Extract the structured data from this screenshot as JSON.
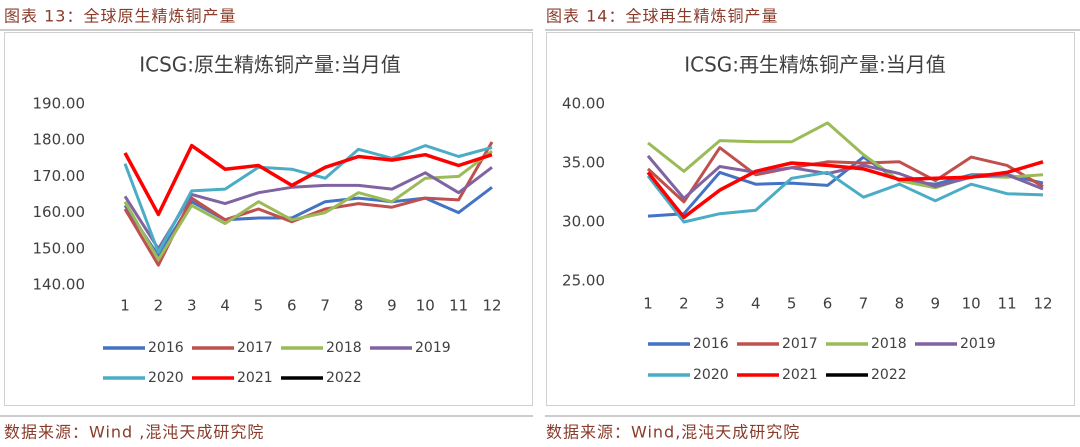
{
  "chart_data": [
    {
      "type": "line",
      "caption": "图表 13：全球原生精炼铜产量",
      "source": "数据来源：Wind ,混沌天成研究院",
      "title": "ICSG:原生精炼铜产量:当月值",
      "categories": [
        "1",
        "2",
        "3",
        "4",
        "5",
        "6",
        "7",
        "8",
        "9",
        "10",
        "11",
        "12"
      ],
      "ylim": [
        140,
        190
      ],
      "yticks": [
        {
          "value": 140,
          "label": "140.00"
        },
        {
          "value": 150,
          "label": "150.00"
        },
        {
          "value": 160,
          "label": "160.00"
        },
        {
          "value": 170,
          "label": "170.00"
        },
        {
          "value": 180,
          "label": "180.00"
        },
        {
          "value": 190,
          "label": "190.00"
        }
      ],
      "grid": false,
      "legend": "bottom",
      "series": [
        {
          "name": "2016",
          "color": "#4472c4",
          "values": [
            162,
            148,
            163,
            158,
            158.5,
            158.5,
            163,
            164,
            163,
            164,
            160,
            167
          ]
        },
        {
          "name": "2017",
          "color": "#c0504d",
          "values": [
            161,
            145.5,
            164,
            158,
            161,
            157.5,
            161,
            162.5,
            161.5,
            164,
            163.5,
            179.5
          ]
        },
        {
          "name": "2018",
          "color": "#9bbb59",
          "values": [
            163,
            147,
            162,
            157,
            163,
            158,
            160,
            165.5,
            163,
            169.5,
            170,
            177
          ]
        },
        {
          "name": "2019",
          "color": "#8064a2",
          "values": [
            164.5,
            150,
            165,
            162.5,
            165.5,
            167,
            167.5,
            167.5,
            166.5,
            171,
            165.5,
            172.5
          ]
        },
        {
          "name": "2020",
          "color": "#4bacc6",
          "values": [
            173.5,
            149,
            166,
            166.5,
            172.5,
            172,
            169.5,
            177.5,
            175,
            178.5,
            175.5,
            178
          ]
        },
        {
          "name": "2021",
          "color": "#ff0000",
          "values": [
            176.5,
            159.5,
            178.5,
            172,
            173,
            167.5,
            172.5,
            175.5,
            174.5,
            176,
            173,
            176
          ]
        },
        {
          "name": "2022",
          "color": "#000000",
          "values": [
            null,
            null,
            null,
            null,
            null,
            null,
            null,
            null,
            null,
            null,
            null,
            null
          ]
        }
      ]
    },
    {
      "type": "line",
      "caption": "图表 14：全球再生精炼铜产量",
      "source": "数据来源：Wind,混沌天成研究院",
      "title": "ICSG:再生精炼铜产量:当月值",
      "categories": [
        "1",
        "2",
        "3",
        "4",
        "5",
        "6",
        "7",
        "8",
        "9",
        "10",
        "11",
        "12"
      ],
      "ylim": [
        25,
        40
      ],
      "yticks": [
        {
          "value": 25,
          "label": "25.00"
        },
        {
          "value": 30,
          "label": "30.00"
        },
        {
          "value": 35,
          "label": "35.00"
        },
        {
          "value": 40,
          "label": "40.00"
        }
      ],
      "grid": false,
      "legend": "bottom",
      "series": [
        {
          "name": "2016",
          "color": "#4472c4",
          "values": [
            30.5,
            30.7,
            34.2,
            33.2,
            33.3,
            33.1,
            35.5,
            33.5,
            33.2,
            34.0,
            34.0,
            33.3
          ]
        },
        {
          "name": "2017",
          "color": "#c0504d",
          "values": [
            34.5,
            31.7,
            36.3,
            34.0,
            34.6,
            35.1,
            35.0,
            35.1,
            33.5,
            35.5,
            34.8,
            33.0
          ]
        },
        {
          "name": "2018",
          "color": "#9bbb59",
          "values": [
            36.7,
            34.3,
            36.9,
            36.8,
            36.8,
            38.4,
            35.7,
            33.5,
            32.9,
            33.9,
            33.8,
            34.0
          ]
        },
        {
          "name": "2019",
          "color": "#8064a2",
          "values": [
            35.6,
            32.0,
            34.7,
            34.2,
            34.6,
            34.1,
            34.8,
            34.1,
            33.0,
            33.8,
            34.0,
            32.8
          ]
        },
        {
          "name": "2020",
          "color": "#4bacc6",
          "values": [
            33.9,
            30.0,
            30.7,
            31.0,
            33.7,
            34.2,
            32.1,
            33.2,
            31.8,
            33.2,
            32.4,
            32.3
          ]
        },
        {
          "name": "2021",
          "color": "#ff0000",
          "values": [
            34.2,
            30.4,
            32.7,
            34.3,
            35.0,
            34.8,
            34.5,
            33.6,
            33.7,
            33.8,
            34.2,
            35.1
          ]
        },
        {
          "name": "2022",
          "color": "#000000",
          "values": [
            null,
            null,
            null,
            null,
            null,
            null,
            null,
            null,
            null,
            null,
            null,
            null
          ]
        }
      ]
    }
  ]
}
